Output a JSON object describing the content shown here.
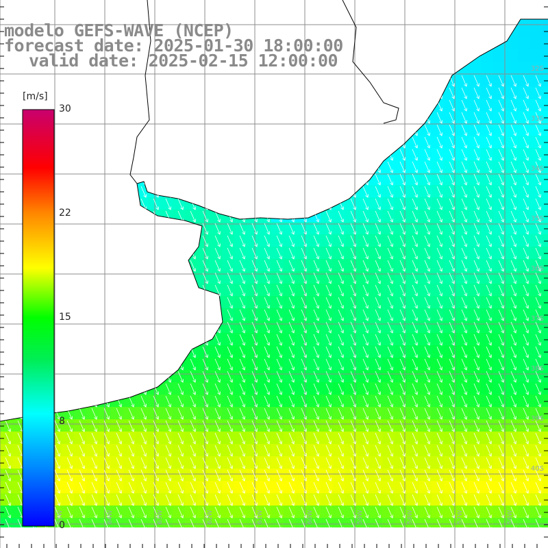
{
  "header": {
    "line1": "modelo GEFS-WAVE (NCEP)",
    "line2": "forecast date: 2025-01-30 18:00:00",
    "line3": "valid date: 2025-02-15 12:00:00"
  },
  "colorbar": {
    "unit": "[m/s]",
    "ticks": [
      "30",
      "22",
      "15",
      "8",
      "0"
    ],
    "colors": [
      "#0000ff",
      "#00aaff",
      "#00ffff",
      "#00ff00",
      "#ffff00",
      "#ff8800",
      "#ff0000",
      "#c8006e"
    ]
  },
  "map": {
    "lat_labels": [
      "32S",
      "33S",
      "34S",
      "35S",
      "36S",
      "37S",
      "38S",
      "39S",
      "40S"
    ],
    "lon_labels": [
      "65W",
      "64W",
      "63W",
      "62W",
      "61W",
      "60W",
      "59W",
      "58W",
      "57W",
      "56W"
    ],
    "land_color": "#ffffff",
    "grid_color": "#8c8c8c"
  }
}
